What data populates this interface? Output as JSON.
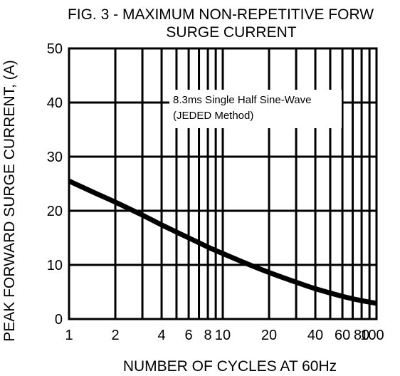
{
  "chart_data": {
    "type": "line",
    "title_lines": [
      "FIG. 3 - MAXIMUM NON-REPETITIVE FORW",
      "SURGE CURRENT"
    ],
    "xlabel": "NUMBER OF CYCLES AT 60Hz",
    "ylabel": "PEAK FORWARD SURGE CURRENT, (A)",
    "x_scale": "log",
    "xlim": [
      1,
      100
    ],
    "ylim": [
      0,
      50
    ],
    "x_ticks": [
      1,
      2,
      4,
      6,
      8,
      10,
      20,
      40,
      60,
      80,
      100
    ],
    "x_tick_labels": [
      "1",
      "2",
      "4",
      "6",
      "8",
      "10",
      "20",
      "40",
      "60",
      "80",
      "100"
    ],
    "x_gridlines": [
      1,
      2,
      3,
      4,
      5,
      6,
      7,
      8,
      9,
      10,
      20,
      30,
      40,
      50,
      60,
      70,
      80,
      90,
      100
    ],
    "y_ticks": [
      0,
      10,
      20,
      30,
      40,
      50
    ],
    "y_tick_labels": [
      "0",
      "10",
      "20",
      "30",
      "40",
      "50"
    ],
    "grid": true,
    "annotation_lines": [
      "8.3ms Single Half Sine-Wave",
      "(JEDED Method)"
    ],
    "series": [
      {
        "color": "#000000",
        "points": [
          [
            1,
            25.5
          ],
          [
            1.5,
            23.2
          ],
          [
            2,
            21.6
          ],
          [
            3,
            19.2
          ],
          [
            4,
            17.4
          ],
          [
            6,
            15.0
          ],
          [
            8,
            13.3
          ],
          [
            10,
            12.1
          ],
          [
            15,
            10.0
          ],
          [
            20,
            8.6
          ],
          [
            30,
            6.8
          ],
          [
            40,
            5.6
          ],
          [
            60,
            4.2
          ],
          [
            80,
            3.4
          ],
          [
            100,
            2.9
          ]
        ]
      }
    ]
  }
}
